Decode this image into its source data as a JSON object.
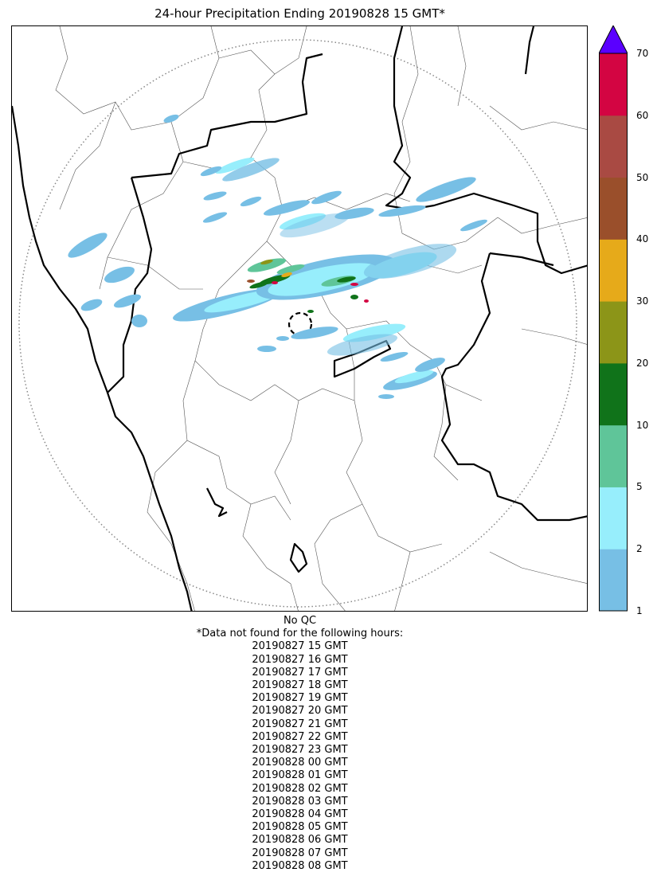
{
  "title": "24-hour Precipitation Ending 20190828 15 GMT*",
  "colorbar": {
    "ticks": [
      "1",
      "2",
      "5",
      "10",
      "20",
      "30",
      "40",
      "50",
      "60",
      "70"
    ],
    "colors": [
      "#77bfe5",
      "#97eefc",
      "#5fc599",
      "#10731a",
      "#8c9518",
      "#e6aa1a",
      "#9a4f2b",
      "#a94a43",
      "#d30542"
    ],
    "extend_color": "#5a00ff"
  },
  "notes": {
    "qc": "No QC",
    "missing_header": "*Data not found for the following hours:",
    "missing_hours": [
      "20190827 15 GMT",
      "20190827 16 GMT",
      "20190827 17 GMT",
      "20190827 18 GMT",
      "20190827 19 GMT",
      "20190827 20 GMT",
      "20190827 21 GMT",
      "20190827 22 GMT",
      "20190827 23 GMT",
      "20190828 00 GMT",
      "20190828 01 GMT",
      "20190828 02 GMT",
      "20190828 03 GMT",
      "20190828 04 GMT",
      "20190828 05 GMT",
      "20190828 06 GMT",
      "20190828 07 GMT",
      "20190828 08 GMT"
    ]
  }
}
